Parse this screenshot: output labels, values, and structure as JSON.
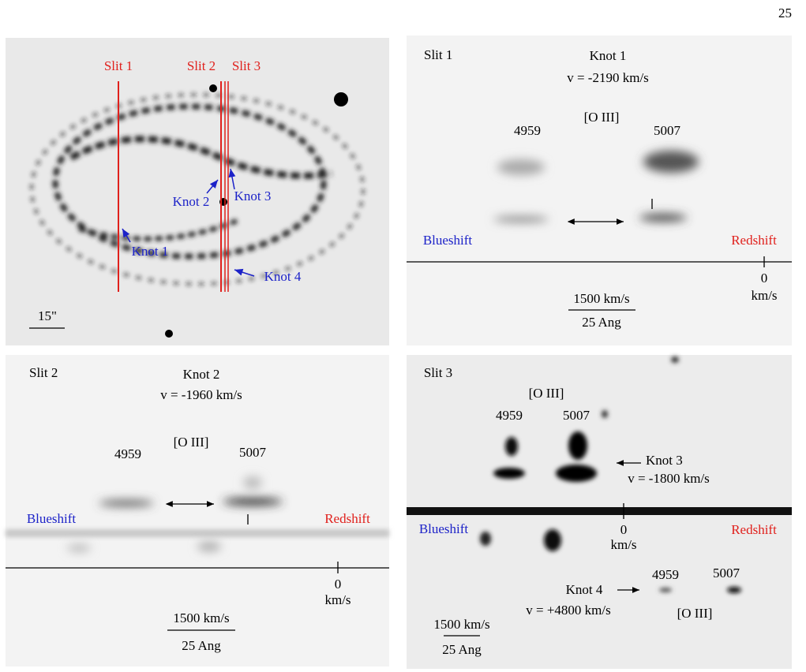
{
  "page_number": "25",
  "panels": [
    {
      "slits": [
        "Slit 1",
        "Slit 2",
        "Slit 3"
      ],
      "knots": [
        "Knot 1",
        "Knot 2",
        "Knot 3",
        "Knot 4"
      ],
      "scale": "15\""
    },
    {
      "slit": "Slit 1",
      "knot": "Knot 1",
      "velocity": "v = -2190 km/s",
      "ion": "[O III]",
      "lines": [
        "4959",
        "5007"
      ],
      "blueshift": "Blueshift",
      "redshift": "Redshift",
      "zero": "0",
      "zero_unit": "km/s",
      "scale_velocity": "1500 km/s",
      "scale_wavelength": "25 Ang"
    },
    {
      "slit": "Slit 2",
      "knot": "Knot 2",
      "velocity": "v = -1960 km/s",
      "ion": "[O III]",
      "lines": [
        "4959",
        "5007"
      ],
      "blueshift": "Blueshift",
      "redshift": "Redshift",
      "zero": "0",
      "zero_unit": "km/s",
      "scale_velocity": "1500 km/s",
      "scale_wavelength": "25 Ang"
    },
    {
      "slit": "Slit 3",
      "ion": "[O III]",
      "lines": [
        "4959",
        "5007"
      ],
      "knot": "Knot 3",
      "velocity": "v = -1800 km/s",
      "blueshift": "Blueshift",
      "redshift": "Redshift",
      "zero": "0",
      "zero_unit": "km/s",
      "knot_2": "Knot 4",
      "velocity_2": "v = +4800 km/s",
      "lines_2": [
        "4959",
        "5007"
      ],
      "ion_2": "[O III]",
      "scale_velocity": "1500 km/s",
      "scale_wavelength": "25 Ang"
    }
  ]
}
